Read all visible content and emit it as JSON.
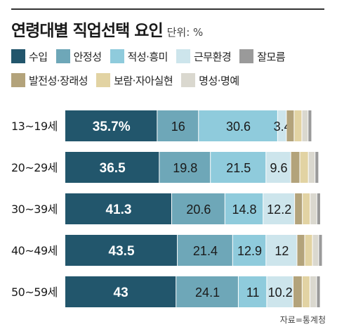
{
  "header": {
    "title": "연령대별 직업선택 요인",
    "unit": "단위: %"
  },
  "source": "자료=통계청",
  "chart_data": {
    "type": "bar",
    "orientation": "horizontal",
    "stacked": true,
    "categories": [
      "13~19세",
      "20~29세",
      "30~39세",
      "40~49세",
      "50~59세"
    ],
    "series": [
      {
        "name": "수입",
        "color": "#22566c",
        "values": [
          35.7,
          36.5,
          41.3,
          43.5,
          43
        ],
        "labels": [
          "35.7%",
          "36.5",
          "41.3",
          "43.5",
          "43"
        ]
      },
      {
        "name": "안정성",
        "color": "#6ea7b8",
        "values": [
          16,
          19.8,
          20.6,
          21.4,
          24.1
        ],
        "labels": [
          "16",
          "19.8",
          "20.6",
          "21.4",
          "24.1"
        ]
      },
      {
        "name": "적성·흥미",
        "color": "#8fcbdc",
        "values": [
          30.6,
          21.5,
          14.8,
          12.9,
          11
        ],
        "labels": [
          "30.6",
          "21.5",
          "14.8",
          "12.9",
          "11"
        ]
      },
      {
        "name": "근무환경",
        "color": "#cde5ec",
        "values": [
          3.4,
          9.6,
          12.2,
          12,
          10.2
        ],
        "labels": [
          "3.4",
          "9.6",
          "12.2",
          "12",
          "10.2"
        ]
      },
      {
        "name": "발전성·장래성",
        "color": "#b3a37b",
        "values": [
          3.0,
          3.5,
          3.0,
          3.0,
          3.5
        ],
        "labels": [
          "",
          "",
          "",
          "",
          ""
        ]
      },
      {
        "name": "보람·자아실현",
        "color": "#e2d3a3",
        "values": [
          3.0,
          3.3,
          3.0,
          3.0,
          3.0
        ],
        "labels": [
          "",
          "",
          "",
          "",
          ""
        ]
      },
      {
        "name": "명성·명예",
        "color": "#dad8cf",
        "values": [
          2.4,
          2.6,
          2.6,
          2.4,
          2.6
        ],
        "labels": [
          "",
          "",
          "",
          "",
          ""
        ]
      },
      {
        "name": "잘모름",
        "color": "#9a9a9a",
        "values": [
          1.4,
          1.4,
          1.4,
          1.4,
          1.4
        ],
        "labels": [
          "",
          "",
          "",
          "",
          ""
        ]
      }
    ],
    "xlim": [
      0,
      100
    ],
    "legend_position": "top",
    "grid": false
  }
}
